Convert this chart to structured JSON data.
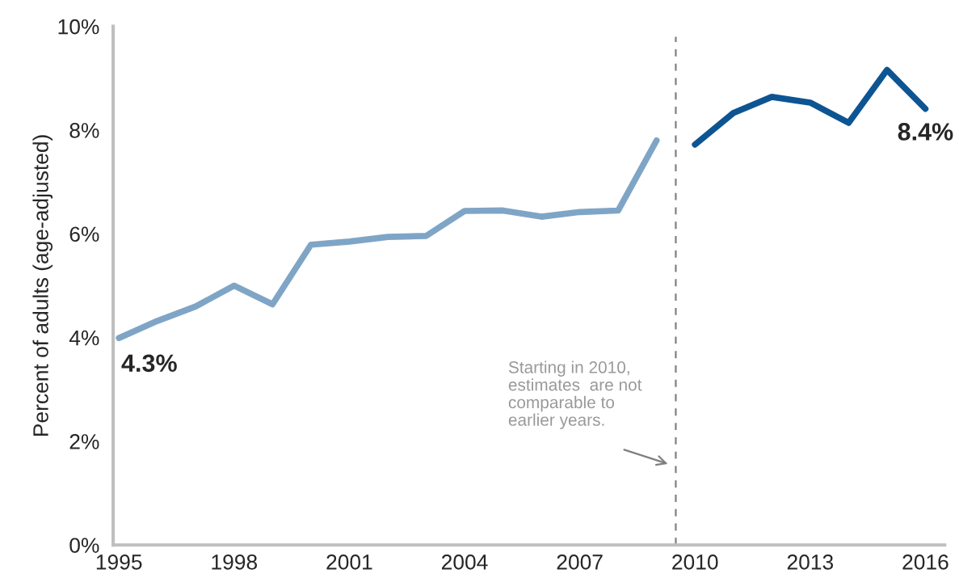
{
  "chart_data": {
    "type": "line",
    "ylabel": "Percent of adults (age-adjusted)",
    "xlim": [
      1994.85,
      2016.5
    ],
    "xticks": [
      1995,
      1998,
      2001,
      2004,
      2007,
      2010,
      2013,
      2016
    ],
    "ylim": [
      0,
      10
    ],
    "yticks": [
      {
        "value": 0,
        "label": "0%"
      },
      {
        "value": 2,
        "label": "2%"
      },
      {
        "value": 4,
        "label": "4%"
      },
      {
        "value": 6,
        "label": "6%"
      },
      {
        "value": 8,
        "label": "8%"
      },
      {
        "value": 10,
        "label": "10%"
      }
    ],
    "grid": false,
    "legend": false,
    "marker": "none",
    "line_style": "solid",
    "series": [
      {
        "color": "#7fa5c6",
        "x": [
          1995,
          1996,
          1997,
          1998,
          1999,
          2000,
          2001,
          2002,
          2003,
          2004,
          2005,
          2006,
          2007,
          2008,
          2009
        ],
        "values": [
          3.99,
          4.32,
          4.6,
          5.0,
          4.64,
          5.79,
          5.85,
          5.94,
          5.96,
          6.44,
          6.45,
          6.33,
          6.42,
          6.45,
          7.8
        ]
      },
      {
        "color": "#0d5592",
        "x": [
          2010,
          2011,
          2012,
          2013,
          2014,
          2015,
          2016
        ],
        "values": [
          7.72,
          8.33,
          8.64,
          8.53,
          8.14,
          9.16,
          8.41
        ]
      }
    ],
    "ref_lines": [
      {
        "axis": "x",
        "value": 2009.5,
        "color": "#808080",
        "line_style": "dashed"
      }
    ],
    "annotations": [
      "4.3%",
      "8.4%",
      "Starting in 2010,\nestimates  are not\ncomparable to\nearlier years."
    ]
  }
}
